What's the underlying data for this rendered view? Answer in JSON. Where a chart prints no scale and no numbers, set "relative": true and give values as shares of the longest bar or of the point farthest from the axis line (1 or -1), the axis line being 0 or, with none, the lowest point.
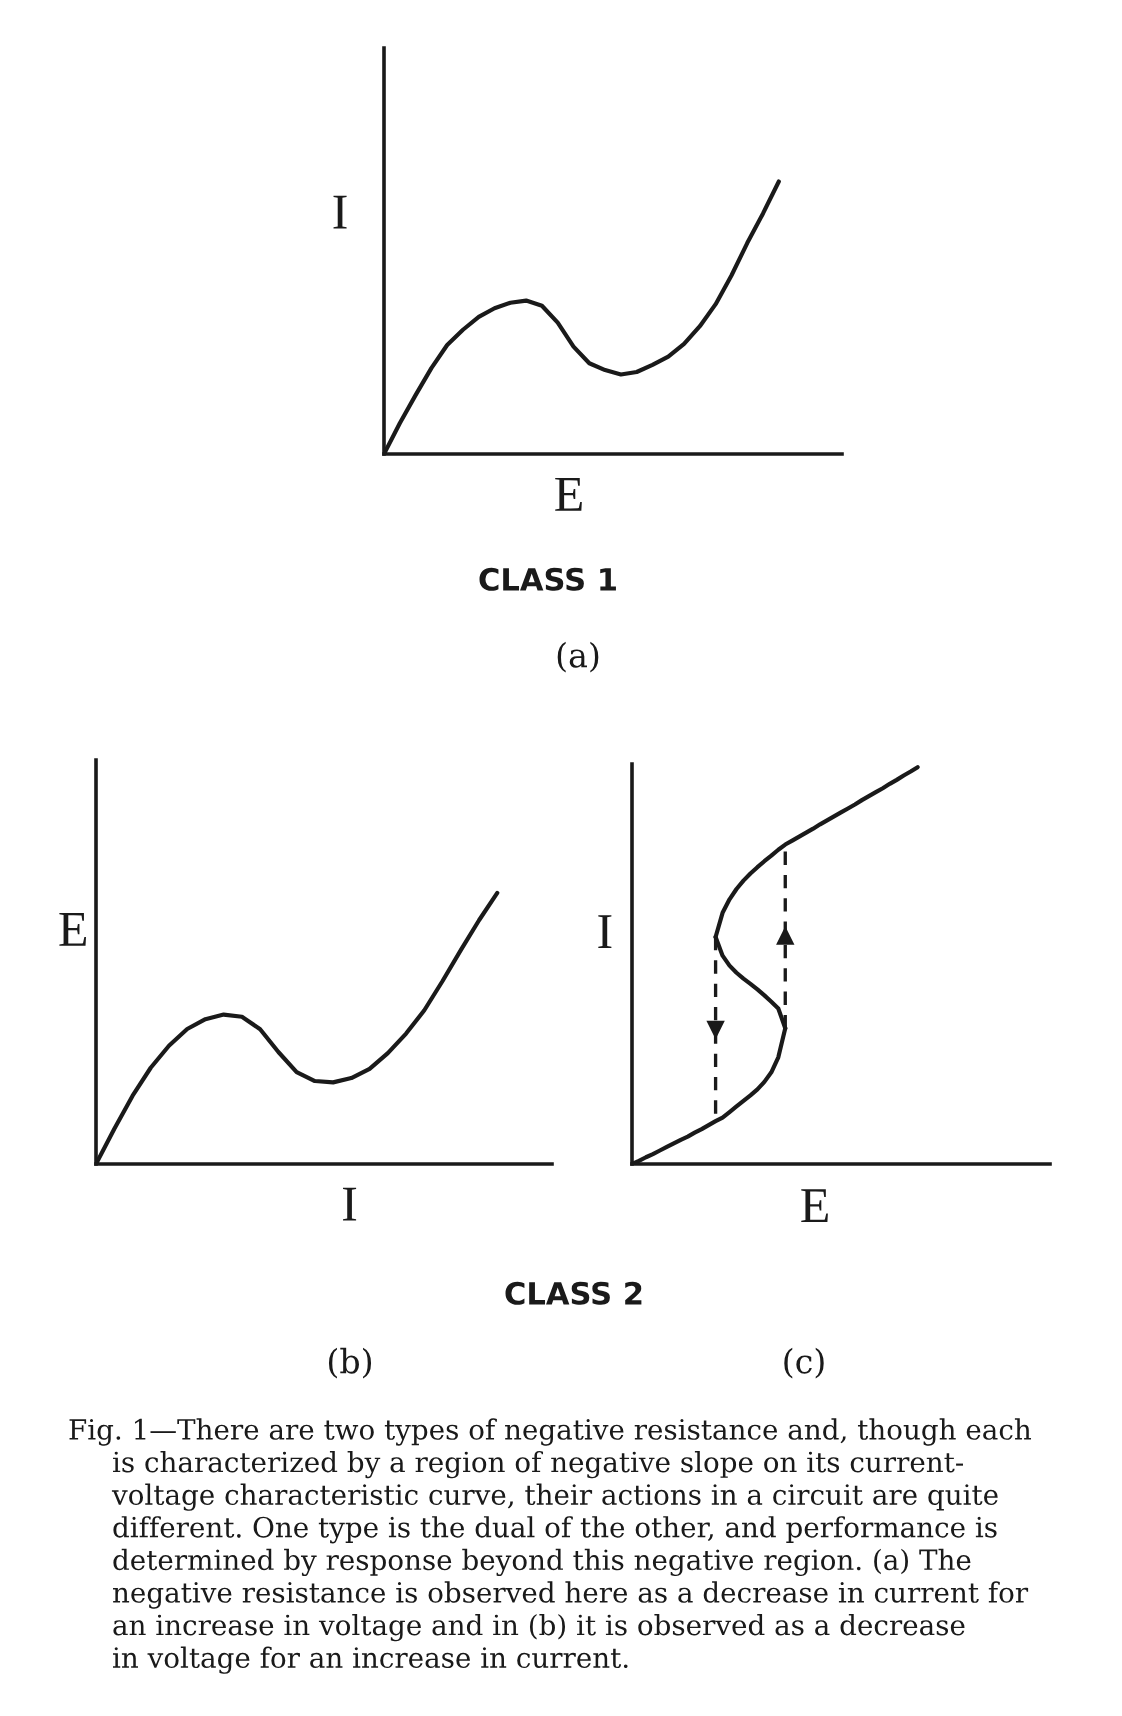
{
  "chart_data": [
    {
      "type": "line",
      "relative": true,
      "xlabel": "E",
      "ylabel": "I",
      "ylim": [
        0,
        1.49
      ],
      "categories": [
        null,
        null,
        null,
        null,
        null,
        null,
        null,
        null,
        null,
        null,
        null,
        null,
        null,
        null,
        null,
        null,
        null,
        null,
        null,
        null,
        null,
        null,
        null,
        null,
        null,
        null,
        null,
        null,
        null,
        null
      ],
      "series": [
        {
          "color": "#1a1a1a",
          "values": [
            0,
            0.113,
            0.216,
            0.315,
            0.4,
            0.456,
            0.503,
            0.535,
            0.555,
            0.563,
            0.544,
            0.482,
            0.394,
            0.333,
            0.308,
            0.292,
            0.301,
            0.327,
            0.357,
            0.404,
            0.469,
            0.55,
            0.655,
            0.774,
            0.883,
            1.0,
            null,
            null,
            null,
            null
          ]
        }
      ],
      "annotations": [
        "CLASS 1",
        "(a)"
      ]
    },
    {
      "type": "line",
      "relative": true,
      "xlabel": "I",
      "ylabel": "E",
      "ylim": [
        0,
        1.49
      ],
      "categories": [
        null,
        null,
        null,
        null,
        null,
        null,
        null,
        null,
        null,
        null,
        null,
        null,
        null,
        null,
        null,
        null,
        null,
        null,
        null,
        null,
        null,
        null,
        null,
        null,
        null,
        null
      ],
      "series": [
        {
          "color": "#1a1a1a",
          "values": [
            0,
            0.129,
            0.251,
            0.355,
            0.436,
            0.498,
            0.534,
            0.551,
            0.543,
            0.497,
            0.413,
            0.339,
            0.306,
            0.301,
            0.317,
            0.351,
            0.409,
            0.481,
            0.567,
            0.675,
            0.789,
            0.899,
            1.0,
            null,
            null,
            null
          ]
        }
      ],
      "annotations": [
        "CLASS 2",
        "(b)"
      ]
    },
    {
      "type": "line",
      "relative": true,
      "xlabel": "E",
      "ylabel": "I",
      "ylim": [
        0,
        1.008
      ],
      "categories": [
        null,
        null,
        null,
        null,
        null,
        null,
        null,
        null,
        null,
        null,
        null,
        null,
        null,
        null,
        null,
        null,
        null,
        null,
        null,
        null,
        null,
        null,
        null,
        null,
        null,
        null,
        null,
        null,
        null,
        null,
        null,
        null,
        null,
        null,
        null,
        null,
        null,
        null,
        null,
        null,
        null,
        null,
        null,
        null,
        null,
        null,
        null,
        null,
        null,
        null,
        null,
        null,
        null,
        null,
        null,
        null,
        null,
        null,
        null,
        null,
        null
      ],
      "series": [
        {
          "color": "#1a1a1a",
          "values": [
            0,
            0.008,
            0.017,
            0.025,
            0.034,
            0.043,
            0.052,
            0.061,
            0.069,
            0.079,
            0.088,
            0.098,
            0.108,
            0.117,
            0.131,
            0.145,
            0.159,
            0.173,
            0.188,
            0.207,
            0.231,
            0.269,
            0.342,
            null,
            null,
            null,
            null,
            null,
            null,
            null,
            null,
            null,
            null,
            null,
            null,
            null,
            null,
            null,
            null,
            null,
            null,
            null,
            null,
            null,
            null,
            null,
            null,
            null,
            null,
            null,
            null,
            null,
            null,
            null,
            null,
            null,
            null,
            null,
            null,
            null,
            null
          ]
        },
        {
          "color": "#1a1a1a",
          "values": [
            null,
            null,
            null,
            null,
            null,
            null,
            null,
            null,
            null,
            null,
            null,
            null,
            0.572,
            0.525,
            0.5,
            0.482,
            0.467,
            0.454,
            0.44,
            0.425,
            0.409,
            0.392,
            0.342,
            null,
            null,
            null,
            null,
            null,
            null,
            null,
            null,
            null,
            null,
            null,
            null,
            null,
            null,
            null,
            null,
            null,
            null,
            null,
            null,
            null,
            null,
            null,
            null,
            null,
            null,
            null,
            null,
            null,
            null,
            null,
            null,
            null,
            null,
            null,
            null,
            null,
            null
          ]
        },
        {
          "color": "#1a1a1a",
          "values": [
            null,
            null,
            null,
            null,
            null,
            null,
            null,
            null,
            null,
            null,
            null,
            null,
            0.572,
            0.633,
            0.667,
            0.693,
            0.714,
            0.732,
            0.748,
            0.763,
            0.777,
            0.792,
            0.805,
            0.815,
            0.825,
            0.835,
            0.845,
            0.856,
            0.866,
            0.876,
            0.886,
            0.896,
            0.906,
            0.917,
            0.927,
            0.937,
            0.947,
            0.958,
            0.968,
            0.979,
            0.989,
            1.0,
            null,
            null,
            null,
            null,
            null,
            null,
            null,
            null,
            null,
            null,
            null,
            null,
            null,
            null,
            null,
            null,
            null,
            null,
            null
          ]
        }
      ],
      "annotations": [
        "(c)",
        "Fig. 1—There are two types of negative resistance and, though each\nis characterized by a region of negative slope on its current-\nvoltage characteristic curve, their actions in a circuit are quite\ndifferent. One type is the dual of the other, and performance is\ndetermined by response beyond this negative region. (a) The\nnegative resistance is observed here as a decrease in current for\nan increase in voltage and in (b) it is observed as a decrease\nin voltage for an increase in current."
      ]
    }
  ]
}
